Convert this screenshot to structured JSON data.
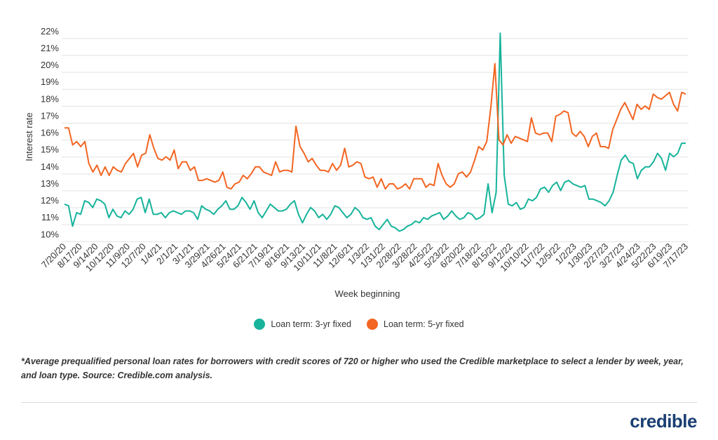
{
  "chart_data": {
    "type": "line",
    "xlabel": "Week beginning",
    "ylabel": "Interest rate",
    "ylim": [
      9.6,
      22.2
    ],
    "y_ticks": [
      10,
      11,
      12,
      13,
      14,
      15,
      16,
      17,
      18,
      19,
      20,
      21,
      22
    ],
    "y_tick_labels": [
      "10%",
      "11%",
      "12%",
      "13%",
      "14%",
      "15%",
      "16%",
      "17%",
      "18%",
      "19%",
      "20%",
      "21%",
      "22%"
    ],
    "x_tick_labels": [
      "7/20/20",
      "8/17/20",
      "9/14/20",
      "10/12/20",
      "11/9/20",
      "12/7/20",
      "1/4/21",
      "2/1/21",
      "3/1/21",
      "3/29/21",
      "4/26/21",
      "5/24/21",
      "6/21/21",
      "7/19/21",
      "8/16/21",
      "9/13/21",
      "10/11/21",
      "11/8/21",
      "12/6/21",
      "1/3/22",
      "1/31/22",
      "2/28/22",
      "3/28/22",
      "4/25/22",
      "5/23/22",
      "6/20/22",
      "7/18/22",
      "8/15/22",
      "9/12/22",
      "10/10/22",
      "11/7/22",
      "12/5/22",
      "1/2/23",
      "1/30/23",
      "2/27/23",
      "3/27/23",
      "4/24/23",
      "5/22/23",
      "6/19/23",
      "7/17/23"
    ],
    "legend_position": "bottom-center",
    "series": [
      {
        "name": "Loan term: 3-yr fixed",
        "color": "#17b39b",
        "values": [
          11.8,
          11.7,
          10.5,
          11.3,
          11.2,
          12.0,
          11.9,
          11.6,
          12.1,
          12.0,
          11.8,
          11.0,
          11.5,
          11.1,
          11.0,
          11.4,
          11.2,
          11.5,
          12.1,
          12.2,
          11.3,
          12.1,
          11.2,
          11.2,
          11.3,
          11.0,
          11.3,
          11.4,
          11.3,
          11.2,
          11.4,
          11.4,
          11.3,
          10.9,
          11.7,
          11.5,
          11.4,
          11.2,
          11.5,
          11.7,
          12.0,
          11.5,
          11.5,
          11.7,
          12.2,
          11.9,
          11.5,
          12.0,
          11.3,
          11.0,
          11.4,
          11.8,
          11.6,
          11.4,
          11.4,
          11.5,
          11.8,
          12.0,
          11.2,
          10.7,
          11.2,
          11.6,
          11.4,
          11.0,
          11.2,
          10.9,
          11.2,
          11.7,
          11.6,
          11.3,
          11.0,
          11.2,
          11.6,
          11.4,
          11.0,
          10.9,
          11.0,
          10.5,
          10.3,
          10.6,
          10.9,
          10.5,
          10.4,
          10.2,
          10.3,
          10.5,
          10.6,
          10.8,
          10.7,
          11.0,
          10.9,
          11.1,
          11.2,
          11.3,
          10.9,
          11.1,
          11.4,
          11.1,
          10.9,
          11.0,
          11.3,
          11.2,
          10.9,
          11.0,
          11.2,
          13.0,
          11.3,
          12.5,
          21.9,
          13.5,
          11.8,
          11.7,
          11.9,
          11.5,
          11.6,
          12.1,
          12.0,
          12.2,
          12.7,
          12.8,
          12.5,
          12.9,
          13.1,
          12.6,
          13.1,
          13.2,
          13.0,
          12.9,
          12.8,
          12.9,
          12.1,
          12.1,
          12.0,
          11.9,
          11.7,
          12.0,
          12.5,
          13.5,
          14.4,
          14.7,
          14.3,
          14.2,
          13.3,
          13.8,
          14.0,
          14.0,
          14.3,
          14.8,
          14.5,
          13.8,
          14.8,
          14.6,
          14.8,
          15.4,
          15.4
        ]
      },
      {
        "name": "Loan term: 5-yr fixed",
        "color": "#f26522",
        "values": [
          16.3,
          16.3,
          15.3,
          15.5,
          15.2,
          15.5,
          14.2,
          13.7,
          14.1,
          13.5,
          14.0,
          13.5,
          14.0,
          13.8,
          13.7,
          14.2,
          14.5,
          14.8,
          14.0,
          14.7,
          14.8,
          15.9,
          15.1,
          14.5,
          14.4,
          14.6,
          14.4,
          15.0,
          13.9,
          14.3,
          14.3,
          13.8,
          14.0,
          13.2,
          13.2,
          13.3,
          13.2,
          13.1,
          13.2,
          13.7,
          12.8,
          12.7,
          13.0,
          13.1,
          13.5,
          13.3,
          13.6,
          14.0,
          14.0,
          13.7,
          13.6,
          13.5,
          14.3,
          13.7,
          13.8,
          13.8,
          13.7,
          16.4,
          15.2,
          14.8,
          14.3,
          14.5,
          14.1,
          13.8,
          13.8,
          13.7,
          14.2,
          13.8,
          14.1,
          15.1,
          14.0,
          14.1,
          14.3,
          14.2,
          13.4,
          13.3,
          13.4,
          12.8,
          13.3,
          12.7,
          13.0,
          13.0,
          12.7,
          12.8,
          13.0,
          12.7,
          13.3,
          13.3,
          13.3,
          12.8,
          13.0,
          12.9,
          14.2,
          13.5,
          13.0,
          12.8,
          13.0,
          13.6,
          13.7,
          13.4,
          13.7,
          14.4,
          15.2,
          15.0,
          15.5,
          17.5,
          20.1,
          15.6,
          15.3,
          15.9,
          15.4,
          15.8,
          15.7,
          15.6,
          15.5,
          16.9,
          16.0,
          15.9,
          16.0,
          16.0,
          15.5,
          17.0,
          17.1,
          17.3,
          17.2,
          16.0,
          15.8,
          16.1,
          15.8,
          15.2,
          15.8,
          16.0,
          15.2,
          15.2,
          15.1,
          16.2,
          16.8,
          17.4,
          17.8,
          17.3,
          16.8,
          17.7,
          17.4,
          17.6,
          17.4,
          18.3,
          18.1,
          18.0,
          18.2,
          18.4,
          17.7,
          17.3,
          18.4,
          18.3
        ]
      }
    ]
  },
  "legend": {
    "items": [
      "Loan term: 3-yr fixed",
      "Loan term: 5-yr fixed"
    ]
  },
  "footnote": "*Average prequalified personal loan rates for borrowers with credit scores of 720 or higher who used the Credible marketplace to select a lender by week, year, and loan type. Source: Credible.com analysis.",
  "logo_text": "credible"
}
